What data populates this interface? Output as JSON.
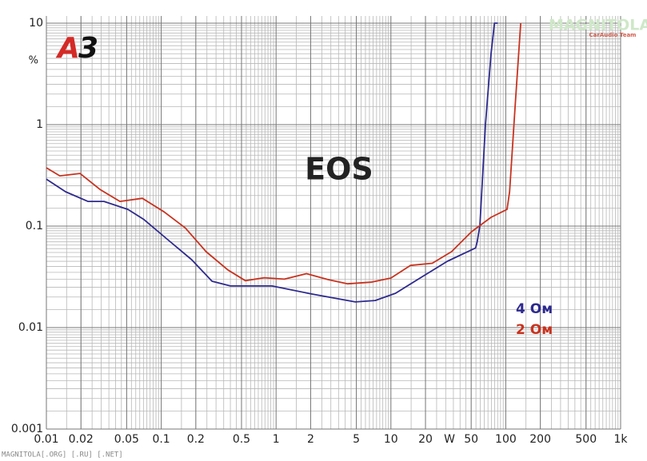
{
  "chart_data": {
    "type": "line",
    "title": "EOS",
    "logo": [
      "A",
      "3"
    ],
    "y_unit": "%",
    "x_label": "W",
    "watermark": "MAGNITOLA",
    "watermark_sub": "CarAudio Team",
    "footer": "MAGNITOLA[.ORG] [.RU] [.NET]",
    "xlog": true,
    "ylog": true,
    "grid": true,
    "xlim": [
      0.01,
      1000
    ],
    "ylim": [
      0.001,
      10
    ],
    "xticks": [
      0.01,
      0.02,
      0.05,
      0.1,
      0.2,
      0.5,
      1,
      2,
      5,
      10,
      20,
      50,
      100,
      200,
      500,
      {
        "value": 1000,
        "label": "1k"
      }
    ],
    "yticks": [
      0.001,
      0.01,
      0.1,
      1,
      10
    ],
    "series": [
      {
        "name": "4 Ом",
        "color": "#2e2a8e",
        "x": [
          0.01,
          0.0147,
          0.023,
          0.0317,
          0.0513,
          0.0707,
          0.114,
          0.184,
          0.277,
          0.4,
          0.92,
          2.05,
          4.9,
          7.3,
          11,
          19.4,
          31,
          54.6,
          56.3,
          59.5,
          66.5,
          74.4,
          79.8,
          85
        ],
        "values": [
          0.29,
          0.218,
          0.175,
          0.175,
          0.146,
          0.116,
          0.0735,
          0.0467,
          0.0286,
          0.0257,
          0.0257,
          0.0214,
          0.0179,
          0.0185,
          0.0218,
          0.0325,
          0.045,
          0.061,
          0.0696,
          0.1,
          1,
          5,
          10,
          10
        ]
      },
      {
        "name": "2 Ом",
        "color": "#c8321e",
        "x": [
          0.01,
          0.0131,
          0.0196,
          0.0293,
          0.0437,
          0.0685,
          0.106,
          0.162,
          0.246,
          0.38,
          0.54,
          0.79,
          1.18,
          1.84,
          2.85,
          4.2,
          6.7,
          10,
          14.8,
          22.9,
          33.7,
          50.3,
          74.5,
          102.6,
          108,
          121,
          135
        ],
        "values": [
          0.376,
          0.313,
          0.33,
          0.23,
          0.175,
          0.188,
          0.138,
          0.096,
          0.056,
          0.037,
          0.029,
          0.031,
          0.03,
          0.034,
          0.0297,
          0.027,
          0.028,
          0.0308,
          0.041,
          0.043,
          0.056,
          0.088,
          0.122,
          0.146,
          0.218,
          1.6,
          10
        ]
      }
    ]
  }
}
